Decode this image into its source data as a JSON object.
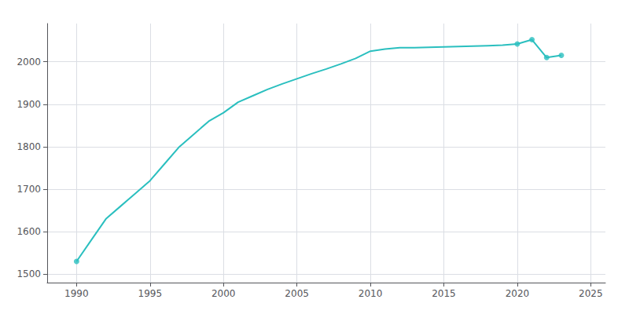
{
  "chart_data": {
    "type": "line",
    "x": [
      1990,
      1991,
      1992,
      1993,
      1994,
      1995,
      1996,
      1997,
      1998,
      1999,
      2000,
      2001,
      2002,
      2003,
      2004,
      2005,
      2006,
      2007,
      2008,
      2009,
      2010,
      2011,
      2012,
      2013,
      2014,
      2015,
      2016,
      2017,
      2018,
      2019,
      2020,
      2021,
      2022,
      2023
    ],
    "series": [
      {
        "type": "line",
        "color": "#2abfbf",
        "values": [
          1530,
          1580,
          1630,
          1660,
          1690,
          1720,
          1760,
          1800,
          1830,
          1860,
          1880,
          1905,
          1920,
          1935,
          1948,
          1960,
          1972,
          1983,
          1995,
          2008,
          2025,
          2030,
          2033,
          2033,
          2034,
          2035,
          2036,
          2037,
          2038,
          2039,
          2042,
          2052,
          2010,
          2015
        ]
      },
      {
        "type": "scatter",
        "marker": "circle",
        "color": "#2abfbf",
        "values": [
          1530,
          null,
          null,
          null,
          null,
          null,
          null,
          null,
          null,
          null,
          null,
          null,
          null,
          null,
          null,
          null,
          null,
          null,
          null,
          null,
          null,
          null,
          null,
          null,
          null,
          null,
          null,
          null,
          null,
          null,
          2042,
          2052,
          2010,
          2015
        ]
      }
    ],
    "xlim": [
      1988,
      2026
    ],
    "ylim": [
      1480,
      2090
    ],
    "xticks": [
      1990,
      1995,
      2000,
      2005,
      2010,
      2015,
      2020,
      2025
    ],
    "yticks": [
      1500,
      1600,
      1700,
      1800,
      1900,
      2000
    ],
    "grid": true
  }
}
